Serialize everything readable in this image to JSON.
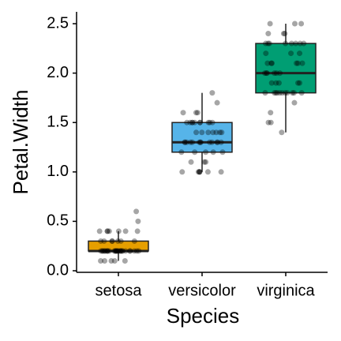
{
  "chart_data": {
    "type": "boxplot",
    "x_label": "Species",
    "y_label": "Petal.Width",
    "categories": [
      "setosa",
      "versicolor",
      "virginica"
    ],
    "colors": [
      "#E69F00",
      "#56B4E9",
      "#009E73"
    ],
    "boxes": [
      {
        "whislo": 0.1,
        "q1": 0.2,
        "med": 0.2,
        "q3": 0.3,
        "whishi": 0.4
      },
      {
        "whislo": 1.0,
        "q1": 1.2,
        "med": 1.3,
        "q3": 1.5,
        "whishi": 1.8
      },
      {
        "whislo": 1.4,
        "q1": 1.8,
        "med": 2.0,
        "q3": 2.3,
        "whishi": 2.5
      }
    ],
    "points": [
      [
        0.2,
        0.2,
        0.2,
        0.2,
        0.2,
        0.4,
        0.3,
        0.2,
        0.2,
        0.1,
        0.2,
        0.2,
        0.1,
        0.1,
        0.2,
        0.4,
        0.4,
        0.3,
        0.3,
        0.3,
        0.2,
        0.4,
        0.2,
        0.5,
        0.2,
        0.2,
        0.4,
        0.2,
        0.2,
        0.2,
        0.2,
        0.4,
        0.1,
        0.2,
        0.2,
        0.2,
        0.2,
        0.1,
        0.2,
        0.2,
        0.3,
        0.3,
        0.2,
        0.6,
        0.4,
        0.3,
        0.2,
        0.2,
        0.2,
        0.2
      ],
      [
        1.4,
        1.5,
        1.5,
        1.3,
        1.5,
        1.3,
        1.6,
        1.0,
        1.3,
        1.4,
        1.0,
        1.5,
        1.0,
        1.4,
        1.3,
        1.4,
        1.5,
        1.0,
        1.5,
        1.1,
        1.8,
        1.3,
        1.5,
        1.2,
        1.3,
        1.4,
        1.4,
        1.7,
        1.5,
        1.0,
        1.1,
        1.0,
        1.2,
        1.6,
        1.5,
        1.6,
        1.5,
        1.3,
        1.3,
        1.3,
        1.2,
        1.4,
        1.2,
        1.0,
        1.3,
        1.2,
        1.3,
        1.3,
        1.1,
        1.3
      ],
      [
        2.5,
        1.9,
        2.1,
        1.8,
        2.2,
        2.1,
        1.7,
        1.8,
        1.8,
        2.5,
        2.0,
        1.9,
        2.1,
        2.0,
        2.4,
        2.3,
        1.8,
        2.2,
        2.3,
        1.5,
        2.3,
        2.0,
        2.0,
        1.8,
        2.1,
        1.8,
        1.8,
        1.8,
        2.1,
        1.6,
        1.9,
        2.0,
        2.2,
        1.5,
        1.4,
        2.3,
        2.4,
        1.8,
        1.8,
        2.1,
        2.4,
        2.3,
        1.9,
        2.3,
        2.5,
        2.3,
        1.9,
        2.0,
        2.3,
        1.8
      ]
    ],
    "ylim": [
      -0.016,
      2.62
    ],
    "yticks": [
      {
        "value": 0,
        "label": "0.0"
      },
      0.5,
      {
        "value": 1,
        "label": "1.0"
      },
      1.5,
      {
        "value": 2,
        "label": "2.0"
      },
      2.5
    ]
  }
}
